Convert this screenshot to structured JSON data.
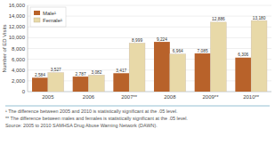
{
  "chart_data": {
    "type": "bar",
    "categories": [
      "2005",
      "2006",
      "2007**",
      "2008",
      "2009**",
      "2010**"
    ],
    "series": [
      {
        "name": "Male¹",
        "color": "#B8622A",
        "values": [
          2584,
          2787,
          3417,
          9224,
          7085,
          6306
        ],
        "value_labels": [
          "2,584",
          "2,787",
          "3,417",
          "9,224",
          "7,085",
          "6,306"
        ]
      },
      {
        "name": "Female¹",
        "color": "#E8D9A8",
        "values": [
          3527,
          3082,
          8999,
          6964,
          12886,
          13180
        ],
        "value_labels": [
          "3,527",
          "3,082",
          "8,999",
          "6,964",
          "12,886",
          "13,180"
        ]
      }
    ],
    "y_label": "Number of ED Visits",
    "ylim": [
      0,
      16000
    ],
    "yticks": [
      0,
      {
        "value": 2000,
        "label": "2,000"
      },
      {
        "value": 4000,
        "label": "4,000"
      },
      {
        "value": 6000,
        "label": "6,000"
      },
      {
        "value": 8000,
        "label": "8,000"
      },
      {
        "value": 10000,
        "label": "10,000"
      },
      {
        "value": 12000,
        "label": "12,000"
      },
      {
        "value": 14000,
        "label": "14,000"
      },
      {
        "value": 16000,
        "label": "16,000"
      }
    ],
    "grid": true,
    "legend": "upper left",
    "data_labels": true,
    "annotations": [
      "¹ The difference between 2005 and 2010 is statistically significant at the .05 level.",
      "** The difference between males and females is statistically significant at the .05 level.",
      "Source: 2005 to 2010 SAMHSA Drug Abuse Warning Network (DAWN)."
    ]
  }
}
